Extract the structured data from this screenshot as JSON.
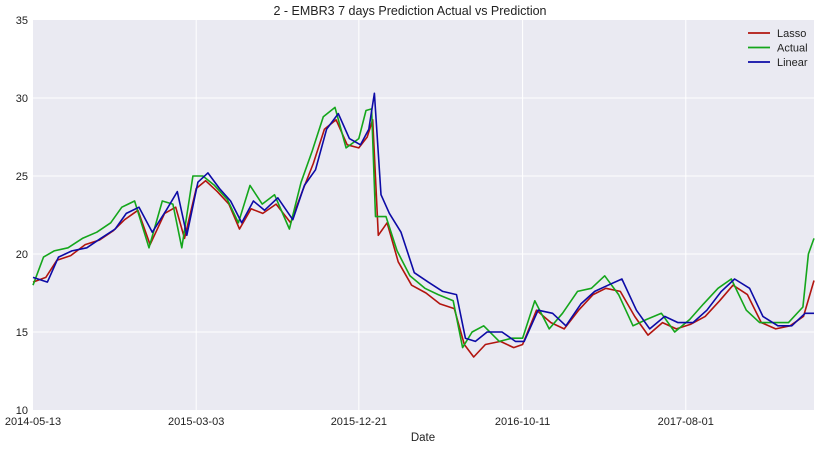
{
  "chart_data": {
    "type": "line",
    "title": "2 - EMBR3 7 days Prediction Actual vs Prediction",
    "xlabel": "Date",
    "ylabel": "",
    "x_ticks": [
      "2014-05-13",
      "2015-03-03",
      "2015-12-21",
      "2016-10-11",
      "2017-08-01"
    ],
    "x_range": [
      "2014-05-13",
      "2018-03-20"
    ],
    "ylim": [
      10,
      35
    ],
    "y_ticks": [
      10,
      15,
      20,
      25,
      30,
      35
    ],
    "grid": true,
    "legend_position": "top-right",
    "series": [
      {
        "name": "Lasso",
        "color": "#b2150f",
        "points": [
          [
            "2014-05-13",
            18.2
          ],
          [
            "2014-06-05",
            18.5
          ],
          [
            "2014-06-25",
            19.6
          ],
          [
            "2014-07-20",
            19.9
          ],
          [
            "2014-08-15",
            20.6
          ],
          [
            "2014-09-10",
            20.9
          ],
          [
            "2014-10-05",
            21.5
          ],
          [
            "2014-10-25",
            22.2
          ],
          [
            "2014-11-18",
            22.8
          ],
          [
            "2014-12-10",
            20.6
          ],
          [
            "2015-01-05",
            22.6
          ],
          [
            "2015-01-25",
            23.0
          ],
          [
            "2015-02-10",
            21.0
          ],
          [
            "2015-03-03",
            24.2
          ],
          [
            "2015-03-20",
            24.7
          ],
          [
            "2015-04-10",
            24.0
          ],
          [
            "2015-05-01",
            23.2
          ],
          [
            "2015-05-20",
            21.6
          ],
          [
            "2015-06-10",
            22.9
          ],
          [
            "2015-07-01",
            22.6
          ],
          [
            "2015-07-25",
            23.2
          ],
          [
            "2015-08-20",
            22.0
          ],
          [
            "2015-09-10",
            24.0
          ],
          [
            "2015-09-30",
            25.8
          ],
          [
            "2015-10-20",
            28.0
          ],
          [
            "2015-11-10",
            28.6
          ],
          [
            "2015-11-30",
            27.0
          ],
          [
            "2015-12-21",
            26.8
          ],
          [
            "2016-01-05",
            27.5
          ],
          [
            "2016-01-15",
            28.6
          ],
          [
            "2016-01-25",
            21.2
          ],
          [
            "2016-02-10",
            22.0
          ],
          [
            "2016-03-01",
            19.5
          ],
          [
            "2016-03-25",
            18.0
          ],
          [
            "2016-04-20",
            17.5
          ],
          [
            "2016-05-15",
            16.8
          ],
          [
            "2016-06-10",
            16.5
          ],
          [
            "2016-06-28",
            14.2
          ],
          [
            "2016-07-15",
            13.4
          ],
          [
            "2016-08-05",
            14.2
          ],
          [
            "2016-09-01",
            14.4
          ],
          [
            "2016-09-25",
            14.0
          ],
          [
            "2016-10-11",
            14.2
          ],
          [
            "2016-11-05",
            16.4
          ],
          [
            "2016-12-01",
            15.6
          ],
          [
            "2016-12-25",
            15.2
          ],
          [
            "2017-01-20",
            16.4
          ],
          [
            "2017-02-15",
            17.4
          ],
          [
            "2017-03-10",
            17.8
          ],
          [
            "2017-04-05",
            17.6
          ],
          [
            "2017-05-01",
            16.0
          ],
          [
            "2017-05-25",
            14.8
          ],
          [
            "2017-06-20",
            15.6
          ],
          [
            "2017-07-15",
            15.2
          ],
          [
            "2017-08-10",
            15.5
          ],
          [
            "2017-09-05",
            16.0
          ],
          [
            "2017-10-01",
            17.0
          ],
          [
            "2017-10-25",
            18.0
          ],
          [
            "2017-11-20",
            17.4
          ],
          [
            "2017-12-15",
            15.6
          ],
          [
            "2018-01-10",
            15.2
          ],
          [
            "2018-02-05",
            15.4
          ],
          [
            "2018-03-01",
            16.0
          ],
          [
            "2018-03-20",
            18.3
          ]
        ]
      },
      {
        "name": "Actual",
        "color": "#14a61b",
        "points": [
          [
            "2014-05-13",
            18.0
          ],
          [
            "2014-06-01",
            19.8
          ],
          [
            "2014-06-20",
            20.2
          ],
          [
            "2014-07-15",
            20.4
          ],
          [
            "2014-08-10",
            21.0
          ],
          [
            "2014-09-05",
            21.4
          ],
          [
            "2014-09-30",
            22.0
          ],
          [
            "2014-10-20",
            23.0
          ],
          [
            "2014-11-12",
            23.4
          ],
          [
            "2014-12-08",
            20.4
          ],
          [
            "2015-01-01",
            23.4
          ],
          [
            "2015-01-20",
            23.2
          ],
          [
            "2015-02-05",
            20.4
          ],
          [
            "2015-02-25",
            25.0
          ],
          [
            "2015-03-15",
            25.0
          ],
          [
            "2015-04-05",
            24.4
          ],
          [
            "2015-04-28",
            23.5
          ],
          [
            "2015-05-18",
            22.0
          ],
          [
            "2015-06-08",
            24.4
          ],
          [
            "2015-06-30",
            23.2
          ],
          [
            "2015-07-22",
            23.8
          ],
          [
            "2015-08-18",
            21.6
          ],
          [
            "2015-09-08",
            24.6
          ],
          [
            "2015-09-28",
            26.6
          ],
          [
            "2015-10-18",
            28.8
          ],
          [
            "2015-11-08",
            29.4
          ],
          [
            "2015-11-28",
            26.8
          ],
          [
            "2015-12-21",
            27.4
          ],
          [
            "2016-01-03",
            29.2
          ],
          [
            "2016-01-13",
            29.3
          ],
          [
            "2016-01-20",
            22.4
          ],
          [
            "2016-02-08",
            22.4
          ],
          [
            "2016-02-28",
            20.2
          ],
          [
            "2016-03-22",
            18.6
          ],
          [
            "2016-04-18",
            17.8
          ],
          [
            "2016-05-12",
            17.4
          ],
          [
            "2016-06-08",
            17.0
          ],
          [
            "2016-06-25",
            14.0
          ],
          [
            "2016-07-12",
            15.0
          ],
          [
            "2016-08-02",
            15.4
          ],
          [
            "2016-08-30",
            14.4
          ],
          [
            "2016-09-22",
            14.6
          ],
          [
            "2016-10-11",
            14.6
          ],
          [
            "2016-11-02",
            17.0
          ],
          [
            "2016-11-28",
            15.2
          ],
          [
            "2016-12-22",
            16.2
          ],
          [
            "2017-01-18",
            17.6
          ],
          [
            "2017-02-12",
            17.8
          ],
          [
            "2017-03-08",
            18.6
          ],
          [
            "2017-04-02",
            17.4
          ],
          [
            "2017-04-28",
            15.4
          ],
          [
            "2017-05-22",
            15.8
          ],
          [
            "2017-06-18",
            16.2
          ],
          [
            "2017-07-12",
            15.0
          ],
          [
            "2017-08-08",
            15.8
          ],
          [
            "2017-09-02",
            16.8
          ],
          [
            "2017-09-28",
            17.8
          ],
          [
            "2017-10-22",
            18.4
          ],
          [
            "2017-11-18",
            16.4
          ],
          [
            "2017-12-12",
            15.6
          ],
          [
            "2018-01-08",
            15.6
          ],
          [
            "2018-02-02",
            15.6
          ],
          [
            "2018-02-28",
            16.6
          ],
          [
            "2018-03-10",
            20.0
          ],
          [
            "2018-03-20",
            21.0
          ]
        ]
      },
      {
        "name": "Linear",
        "color": "#0d0ba6",
        "points": [
          [
            "2014-05-13",
            18.5
          ],
          [
            "2014-06-08",
            18.2
          ],
          [
            "2014-06-28",
            19.8
          ],
          [
            "2014-07-22",
            20.2
          ],
          [
            "2014-08-18",
            20.4
          ],
          [
            "2014-09-12",
            21.0
          ],
          [
            "2014-10-08",
            21.6
          ],
          [
            "2014-10-28",
            22.6
          ],
          [
            "2014-11-20",
            23.0
          ],
          [
            "2014-12-14",
            21.4
          ],
          [
            "2015-01-08",
            22.8
          ],
          [
            "2015-01-28",
            24.0
          ],
          [
            "2015-02-14",
            21.2
          ],
          [
            "2015-03-06",
            24.6
          ],
          [
            "2015-03-24",
            25.2
          ],
          [
            "2015-04-14",
            24.2
          ],
          [
            "2015-05-04",
            23.4
          ],
          [
            "2015-05-24",
            22.0
          ],
          [
            "2015-06-14",
            23.4
          ],
          [
            "2015-07-04",
            22.8
          ],
          [
            "2015-07-28",
            23.6
          ],
          [
            "2015-08-24",
            22.2
          ],
          [
            "2015-09-14",
            24.4
          ],
          [
            "2015-10-04",
            25.4
          ],
          [
            "2015-10-24",
            28.0
          ],
          [
            "2015-11-14",
            29.0
          ],
          [
            "2015-12-04",
            27.4
          ],
          [
            "2015-12-24",
            27.0
          ],
          [
            "2016-01-08",
            28.0
          ],
          [
            "2016-01-18",
            30.3
          ],
          [
            "2016-01-30",
            23.8
          ],
          [
            "2016-02-14",
            22.6
          ],
          [
            "2016-03-06",
            21.4
          ],
          [
            "2016-03-30",
            18.8
          ],
          [
            "2016-04-24",
            18.2
          ],
          [
            "2016-05-20",
            17.6
          ],
          [
            "2016-06-14",
            17.4
          ],
          [
            "2016-06-30",
            14.6
          ],
          [
            "2016-07-18",
            14.4
          ],
          [
            "2016-08-08",
            15.0
          ],
          [
            "2016-09-04",
            15.0
          ],
          [
            "2016-09-28",
            14.4
          ],
          [
            "2016-10-14",
            14.4
          ],
          [
            "2016-11-08",
            16.4
          ],
          [
            "2016-12-04",
            16.2
          ],
          [
            "2016-12-28",
            15.4
          ],
          [
            "2017-01-24",
            16.8
          ],
          [
            "2017-02-18",
            17.6
          ],
          [
            "2017-03-14",
            18.0
          ],
          [
            "2017-04-08",
            18.4
          ],
          [
            "2017-05-04",
            16.4
          ],
          [
            "2017-05-28",
            15.2
          ],
          [
            "2017-06-24",
            16.0
          ],
          [
            "2017-07-18",
            15.6
          ],
          [
            "2017-08-14",
            15.6
          ],
          [
            "2017-09-08",
            16.4
          ],
          [
            "2017-10-04",
            17.6
          ],
          [
            "2017-10-28",
            18.4
          ],
          [
            "2017-11-24",
            17.8
          ],
          [
            "2017-12-18",
            16.0
          ],
          [
            "2018-01-14",
            15.4
          ],
          [
            "2018-02-08",
            15.4
          ],
          [
            "2018-03-04",
            16.2
          ],
          [
            "2018-03-20",
            16.2
          ]
        ]
      }
    ]
  }
}
